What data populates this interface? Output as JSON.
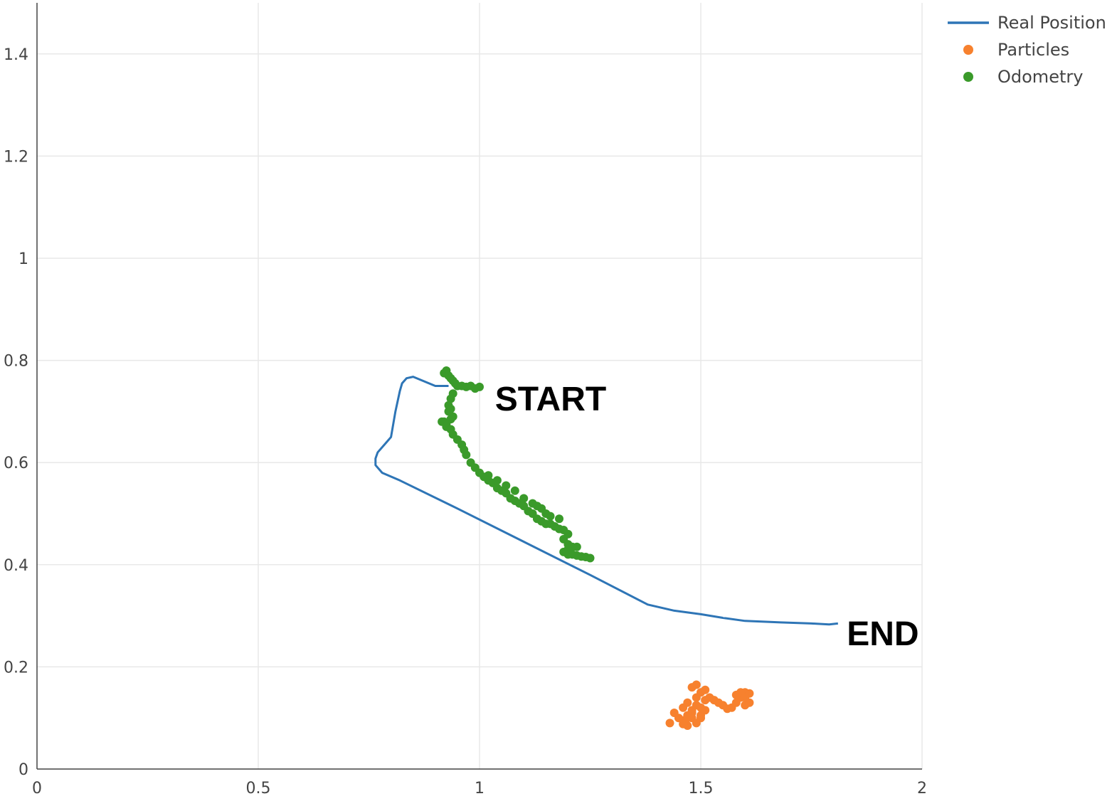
{
  "colors": {
    "real_position": "#2e75b6",
    "particles": "#f7812e",
    "odometry": "#3a9a2a",
    "grid": "#e8e8e8",
    "axis": "#444444"
  },
  "chart_data": {
    "type": "scatter",
    "title": "",
    "xlabel": "",
    "ylabel": "",
    "xlim": [
      0,
      2
    ],
    "ylim": [
      0,
      1.5
    ],
    "grid": true,
    "legend_position": "top-right",
    "x_ticks": [
      {
        "value": 0,
        "label": "0"
      },
      {
        "value": 0.5,
        "label": "0.5"
      },
      {
        "value": 1,
        "label": "1"
      },
      {
        "value": 1.5,
        "label": "1.5"
      },
      {
        "value": 2,
        "label": "2"
      }
    ],
    "y_ticks": [
      {
        "value": 0,
        "label": "0"
      },
      {
        "value": 0.2,
        "label": "0.2"
      },
      {
        "value": 0.4,
        "label": "0.4"
      },
      {
        "value": 0.6,
        "label": "0.6"
      },
      {
        "value": 0.8,
        "label": "0.8"
      },
      {
        "value": 1,
        "label": "1"
      },
      {
        "value": 1.2,
        "label": "1.2"
      },
      {
        "value": 1.4,
        "label": "1.4"
      }
    ],
    "series": [
      {
        "name": "Real Position",
        "mode": "lines",
        "x": [
          1.81,
          1.79,
          1.75,
          1.68,
          1.6,
          1.55,
          1.5,
          1.44,
          1.38,
          1.25,
          1.1,
          0.95,
          0.82,
          0.78,
          0.765,
          0.765,
          0.77,
          0.79,
          0.8,
          0.81,
          0.82,
          0.825,
          0.835,
          0.85,
          0.9,
          0.93
        ],
        "y": [
          0.285,
          0.283,
          0.285,
          0.287,
          0.29,
          0.296,
          0.303,
          0.31,
          0.322,
          0.38,
          0.445,
          0.51,
          0.565,
          0.58,
          0.595,
          0.608,
          0.62,
          0.64,
          0.65,
          0.7,
          0.74,
          0.755,
          0.765,
          0.768,
          0.75,
          0.75
        ]
      },
      {
        "name": "Particles",
        "mode": "markers",
        "x": [
          1.43,
          1.44,
          1.45,
          1.46,
          1.46,
          1.47,
          1.47,
          1.48,
          1.48,
          1.49,
          1.49,
          1.5,
          1.5,
          1.5,
          1.51,
          1.51,
          1.52,
          1.49,
          1.48,
          1.47,
          1.53,
          1.54,
          1.55,
          1.56,
          1.57,
          1.58,
          1.59,
          1.6,
          1.61,
          1.6,
          1.59,
          1.58,
          1.61,
          1.6,
          1.5,
          1.51,
          1.48,
          1.49,
          1.46,
          1.47
        ],
        "y": [
          0.09,
          0.11,
          0.1,
          0.095,
          0.12,
          0.105,
          0.13,
          0.115,
          0.16,
          0.14,
          0.165,
          0.15,
          0.12,
          0.1,
          0.135,
          0.155,
          0.14,
          0.125,
          0.11,
          0.085,
          0.135,
          0.13,
          0.125,
          0.118,
          0.12,
          0.13,
          0.14,
          0.15,
          0.148,
          0.125,
          0.15,
          0.145,
          0.13,
          0.14,
          0.105,
          0.115,
          0.1,
          0.09,
          0.088,
          0.1
        ]
      },
      {
        "name": "Odometry",
        "mode": "markers",
        "x": [
          0.92,
          0.925,
          0.93,
          0.935,
          0.94,
          0.945,
          0.95,
          0.96,
          0.97,
          0.98,
          0.99,
          1.0,
          0.94,
          0.935,
          0.93,
          0.935,
          0.94,
          0.93,
          0.935,
          0.925,
          0.92,
          0.915,
          0.925,
          0.935,
          0.94,
          0.95,
          0.96,
          0.965,
          0.97,
          0.98,
          0.99,
          1.0,
          1.01,
          1.02,
          1.03,
          1.04,
          1.05,
          1.06,
          1.07,
          1.08,
          1.09,
          1.1,
          1.11,
          1.12,
          1.13,
          1.14,
          1.15,
          1.16,
          1.17,
          1.18,
          1.19,
          1.2,
          1.19,
          1.2,
          1.21,
          1.2,
          1.19,
          1.2,
          1.21,
          1.22,
          1.23,
          1.24,
          1.25,
          1.22,
          1.18,
          1.16,
          1.14,
          1.15,
          1.13,
          1.12,
          1.1,
          1.08,
          1.06,
          1.04,
          1.02
        ],
        "y": [
          0.775,
          0.78,
          0.77,
          0.765,
          0.76,
          0.755,
          0.75,
          0.75,
          0.748,
          0.75,
          0.745,
          0.748,
          0.735,
          0.725,
          0.712,
          0.705,
          0.69,
          0.7,
          0.685,
          0.675,
          0.68,
          0.68,
          0.67,
          0.665,
          0.655,
          0.645,
          0.635,
          0.625,
          0.615,
          0.6,
          0.59,
          0.58,
          0.572,
          0.565,
          0.56,
          0.55,
          0.545,
          0.54,
          0.53,
          0.525,
          0.52,
          0.515,
          0.505,
          0.5,
          0.49,
          0.485,
          0.48,
          0.48,
          0.475,
          0.47,
          0.468,
          0.46,
          0.45,
          0.44,
          0.435,
          0.43,
          0.425,
          0.42,
          0.42,
          0.418,
          0.416,
          0.415,
          0.413,
          0.435,
          0.49,
          0.495,
          0.51,
          0.5,
          0.515,
          0.52,
          0.53,
          0.545,
          0.555,
          0.565,
          0.575
        ]
      }
    ],
    "annotations": [
      {
        "text": "START",
        "x": 1.035,
        "y": 0.73
      },
      {
        "text": "END",
        "x": 1.83,
        "y": 0.27
      }
    ]
  }
}
